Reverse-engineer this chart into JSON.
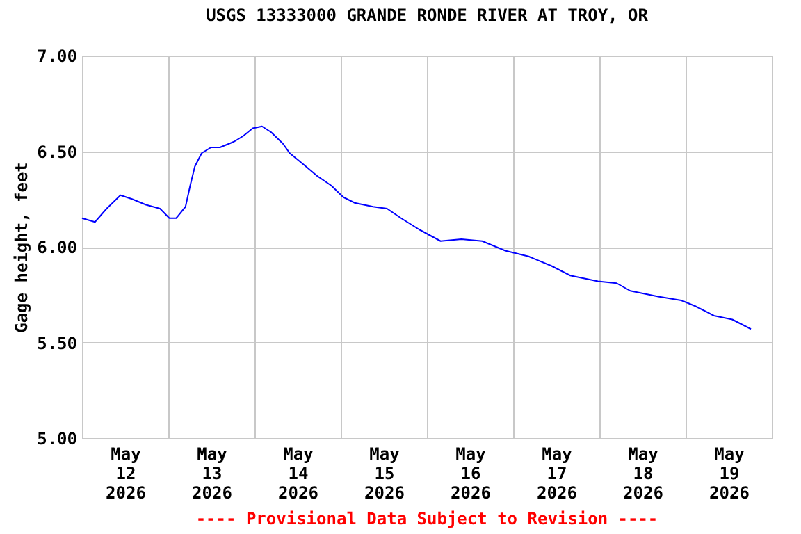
{
  "chart_data": {
    "type": "line",
    "title": "USGS 13333000 GRANDE RONDE RIVER AT TROY, OR",
    "ylabel": "Gage height, feet",
    "annotations": [
      "---- Provisional Data Subject to Revision ----"
    ],
    "x": [
      "2026-05-12T00:00",
      "2026-05-12T03:36",
      "2026-05-12T06:51",
      "2026-05-12T10:42",
      "2026-05-12T13:54",
      "2026-05-12T17:48",
      "2026-05-12T21:42",
      "2026-05-13T00:18",
      "2026-05-13T02:12",
      "2026-05-13T04:48",
      "2026-05-13T06:06",
      "2026-05-13T07:24",
      "2026-05-13T09:18",
      "2026-05-13T11:54",
      "2026-05-13T14:24",
      "2026-05-13T18:18",
      "2026-05-13T20:54",
      "2026-05-13T23:30",
      "2026-05-14T02:06",
      "2026-05-14T04:36",
      "2026-05-14T07:54",
      "2026-05-14T09:48",
      "2026-05-14T13:42",
      "2026-05-14T17:30",
      "2026-05-14T21:24",
      "2026-05-15T00:42",
      "2026-05-15T03:54",
      "2026-05-15T09:00",
      "2026-05-15T12:54",
      "2026-05-15T16:48",
      "2026-05-15T21:54",
      "2026-05-16T03:48",
      "2026-05-16T09:36",
      "2026-05-16T15:24",
      "2026-05-16T21:48",
      "2026-05-17T04:18",
      "2026-05-17T10:42",
      "2026-05-17T15:54",
      "2026-05-17T23:36",
      "2026-05-18T04:48",
      "2026-05-18T08:36",
      "2026-05-18T16:24",
      "2026-05-18T22:48",
      "2026-05-19T02:42",
      "2026-05-19T07:54",
      "2026-05-19T13:00",
      "2026-05-19T18:12"
    ],
    "series": [
      {
        "color": "#0000ff",
        "values": [
          6.15,
          6.13,
          6.2,
          6.27,
          6.25,
          6.22,
          6.2,
          6.15,
          6.15,
          6.21,
          6.32,
          6.42,
          6.49,
          6.52,
          6.52,
          6.55,
          6.58,
          6.62,
          6.63,
          6.6,
          6.54,
          6.49,
          6.43,
          6.37,
          6.32,
          6.26,
          6.23,
          6.21,
          6.2,
          6.15,
          6.09,
          6.03,
          6.04,
          6.03,
          5.98,
          5.95,
          5.9,
          5.85,
          5.82,
          5.81,
          5.77,
          5.74,
          5.72,
          5.69,
          5.64,
          5.62,
          5.57
        ]
      }
    ],
    "xlim": [
      "2026-05-12T00:00",
      "2026-05-20T00:00"
    ],
    "xticks": [
      {
        "value": "2026-05-12T00:00",
        "label": null
      },
      {
        "value": "2026-05-12T12:00",
        "label": "May\n12\n2026"
      },
      {
        "value": "2026-05-13T00:00",
        "label": null
      },
      {
        "value": "2026-05-13T12:00",
        "label": "May\n13\n2026"
      },
      {
        "value": "2026-05-14T00:00",
        "label": null
      },
      {
        "value": "2026-05-14T12:00",
        "label": "May\n14\n2026"
      },
      {
        "value": "2026-05-15T00:00",
        "label": null
      },
      {
        "value": "2026-05-15T12:00",
        "label": "May\n15\n2026"
      },
      {
        "value": "2026-05-16T00:00",
        "label": null
      },
      {
        "value": "2026-05-16T12:00",
        "label": "May\n16\n2026"
      },
      {
        "value": "2026-05-17T00:00",
        "label": null
      },
      {
        "value": "2026-05-17T12:00",
        "label": "May\n17\n2026"
      },
      {
        "value": "2026-05-18T00:00",
        "label": null
      },
      {
        "value": "2026-05-18T12:00",
        "label": "May\n18\n2026"
      },
      {
        "value": "2026-05-19T00:00",
        "label": null
      },
      {
        "value": "2026-05-19T12:00",
        "label": "May\n19\n2026"
      },
      {
        "value": "2026-05-20T00:00",
        "label": null
      }
    ],
    "ylim": [
      5,
      7
    ],
    "yticks": [
      {
        "value": 5,
        "label": "5.00"
      },
      {
        "value": 5.5,
        "label": "5.50"
      },
      {
        "value": 6,
        "label": "6.00"
      },
      {
        "value": 6.5,
        "label": "6.50"
      },
      {
        "value": 7,
        "label": "7.00"
      }
    ],
    "grid": true,
    "line_style": "solid",
    "marker": "none"
  }
}
